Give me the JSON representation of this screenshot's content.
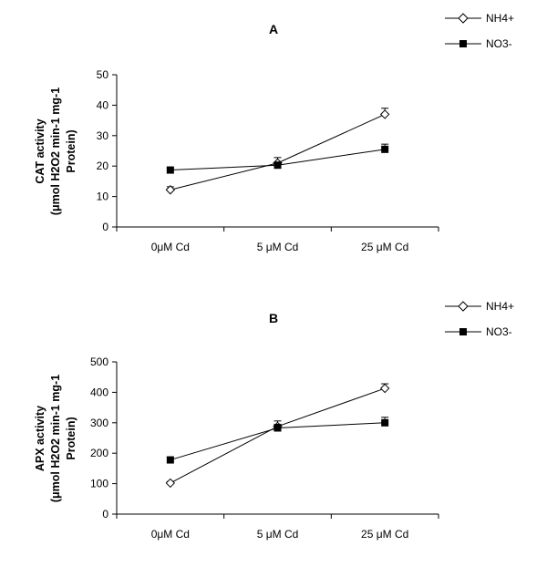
{
  "chart_data": [
    {
      "type": "line",
      "title": "A",
      "ylabel_lines": [
        "CAT activity",
        "(μmol H2O2 min-1 mg-1",
        "Protein)"
      ],
      "xlabel": "",
      "categories": [
        "0μM Cd",
        "5  μM Cd",
        "25  μM Cd"
      ],
      "ylim": [
        0,
        50
      ],
      "yticks": [
        0,
        10,
        20,
        30,
        40,
        50
      ],
      "grid": false,
      "legend_position": "top-right",
      "series": [
        {
          "name": "NH4+",
          "marker": "open-diamond",
          "values": [
            12.2,
            21.0,
            37.0
          ],
          "errors": [
            1.0,
            1.8,
            2.0
          ]
        },
        {
          "name": "NO3-",
          "marker": "filled-square",
          "values": [
            18.7,
            20.3,
            25.5
          ],
          "errors": [
            0.6,
            1.0,
            1.7
          ]
        }
      ]
    },
    {
      "type": "line",
      "title": "B",
      "ylabel_lines": [
        "APX activity",
        "(μmol H2O2 min-1 mg-1",
        "Protein)"
      ],
      "xlabel": "",
      "categories": [
        "0μM Cd",
        "5  μM Cd",
        "25  μM Cd"
      ],
      "ylim": [
        0,
        500
      ],
      "yticks": [
        0,
        100,
        200,
        300,
        400,
        500
      ],
      "grid": false,
      "legend_position": "top-right",
      "series": [
        {
          "name": "NH4+",
          "marker": "open-diamond",
          "values": [
            102,
            288,
            413
          ],
          "errors": [
            5,
            18,
            15
          ]
        },
        {
          "name": "NO3-",
          "marker": "filled-square",
          "values": [
            178,
            283,
            300
          ],
          "errors": [
            8,
            12,
            18
          ]
        }
      ]
    }
  ]
}
